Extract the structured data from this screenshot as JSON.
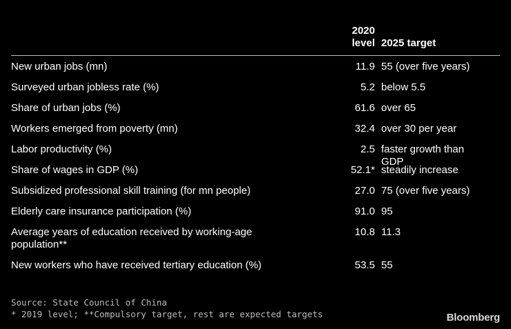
{
  "chart_data": {
    "type": "table",
    "columns": [
      "",
      "2020 level",
      "2025 target"
    ],
    "header": {
      "col2_line1": "2020",
      "col2_line2": "level",
      "col3": "2025 target"
    },
    "rows": [
      {
        "indicator": "New urban jobs (mn)",
        "level_2020": "11.9",
        "target_2025": "55 (over five years)"
      },
      {
        "indicator": "Surveyed urban jobless rate (%)",
        "level_2020": "5.2",
        "target_2025": "below 5.5"
      },
      {
        "indicator": "Share of urban jobs (%)",
        "level_2020": "61.6",
        "target_2025": "over 65"
      },
      {
        "indicator": "Workers emerged from poverty (mn)",
        "level_2020": "32.4",
        "target_2025": "over 30 per year"
      },
      {
        "indicator": "Labor productivity (%)",
        "level_2020": "2.5",
        "target_2025": "faster growth than GDP"
      },
      {
        "indicator": "Share of wages in GDP (%)",
        "level_2020": "52.1*",
        "target_2025": "steadily increase"
      },
      {
        "indicator": "Subsidized professional skill training (for mn people)",
        "level_2020": "27.0",
        "target_2025": "75 (over five years)"
      },
      {
        "indicator": "Elderly care insurance participation (%)",
        "level_2020": "91.0",
        "target_2025": "95"
      },
      {
        "indicator": "Average years of education received by working-age population**",
        "level_2020": "10.8",
        "target_2025": "11.3"
      },
      {
        "indicator": "New workers who have received tertiary education (%)",
        "level_2020": "53.5",
        "target_2025": "55"
      }
    ]
  },
  "footer": {
    "source": "Source: State Council of China",
    "note": "* 2019 level; **Compulsory target, rest are expected targets"
  },
  "brand": "Bloomberg"
}
